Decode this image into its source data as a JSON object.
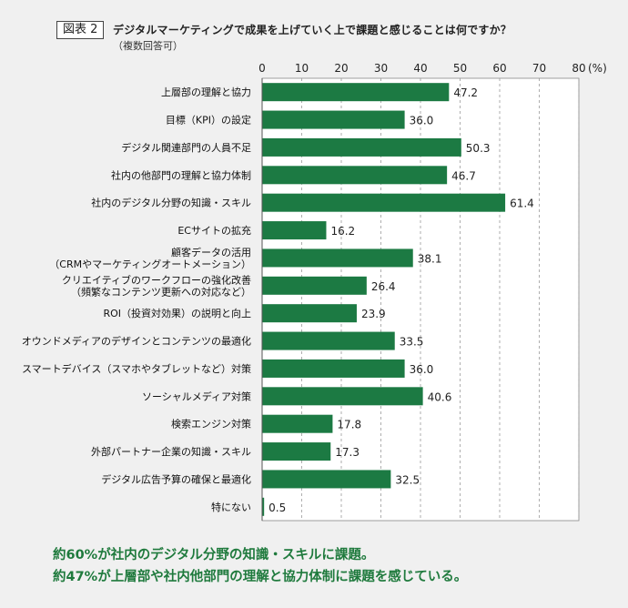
{
  "figure_label": "図表 2",
  "chart_data": {
    "type": "bar",
    "orientation": "horizontal",
    "title": "デジタルマーケティングで成果を上げていく上で課題と感じることは何ですか？",
    "subtitle": "（複数回答可）",
    "xlim": [
      0,
      80
    ],
    "ticks": [
      "0",
      "10",
      "20",
      "30",
      "40",
      "50",
      "60",
      "70",
      "80"
    ],
    "tick_values": [
      0,
      10,
      20,
      30,
      40,
      50,
      60,
      70,
      80
    ],
    "unit_label": "(%)",
    "grid": "vertical dashed",
    "bar_color": "#1c7a43",
    "categories": [
      [
        "上層部の理解と協力"
      ],
      [
        "目標（KPI）の設定"
      ],
      [
        "デジタル関連部門の人員不足"
      ],
      [
        "社内の他部門の理解と協力体制"
      ],
      [
        "社内のデジタル分野の知識・スキル"
      ],
      [
        "ECサイトの拡充"
      ],
      [
        "顧客データの活用",
        "（CRMやマーケティングオートメーション）"
      ],
      [
        "クリエイティブのワークフローの強化改善",
        "（頻繁なコンテンツ更新への対応など）"
      ],
      [
        "ROI（投資対効果）の説明と向上"
      ],
      [
        "オウンドメディアのデザインとコンテンツの最適化"
      ],
      [
        "スマートデバイス（スマホやタブレットなど）対策"
      ],
      [
        "ソーシャルメディア対策"
      ],
      [
        "検索エンジン対策"
      ],
      [
        "外部パートナー企業の知識・スキル"
      ],
      [
        "デジタル広告予算の確保と最適化"
      ],
      [
        "特にない"
      ]
    ],
    "values": [
      47.2,
      36.0,
      50.3,
      46.7,
      61.4,
      16.2,
      38.1,
      26.4,
      23.9,
      33.5,
      36.0,
      40.6,
      17.8,
      17.3,
      32.5,
      0.5
    ],
    "value_labels": [
      "47.2",
      "36.0",
      "50.3",
      "46.7",
      "61.4",
      "16.2",
      "38.1",
      "26.4",
      "23.9",
      "33.5",
      "36.0",
      "40.6",
      "17.8",
      "17.3",
      "32.5",
      "0.5"
    ]
  },
  "conclusion": {
    "line1": "約60%が社内のデジタル分野の知識・スキルに課題。",
    "line2": "約47%が上層部や社内他部門の理解と協力体制に課題を感じている。"
  }
}
